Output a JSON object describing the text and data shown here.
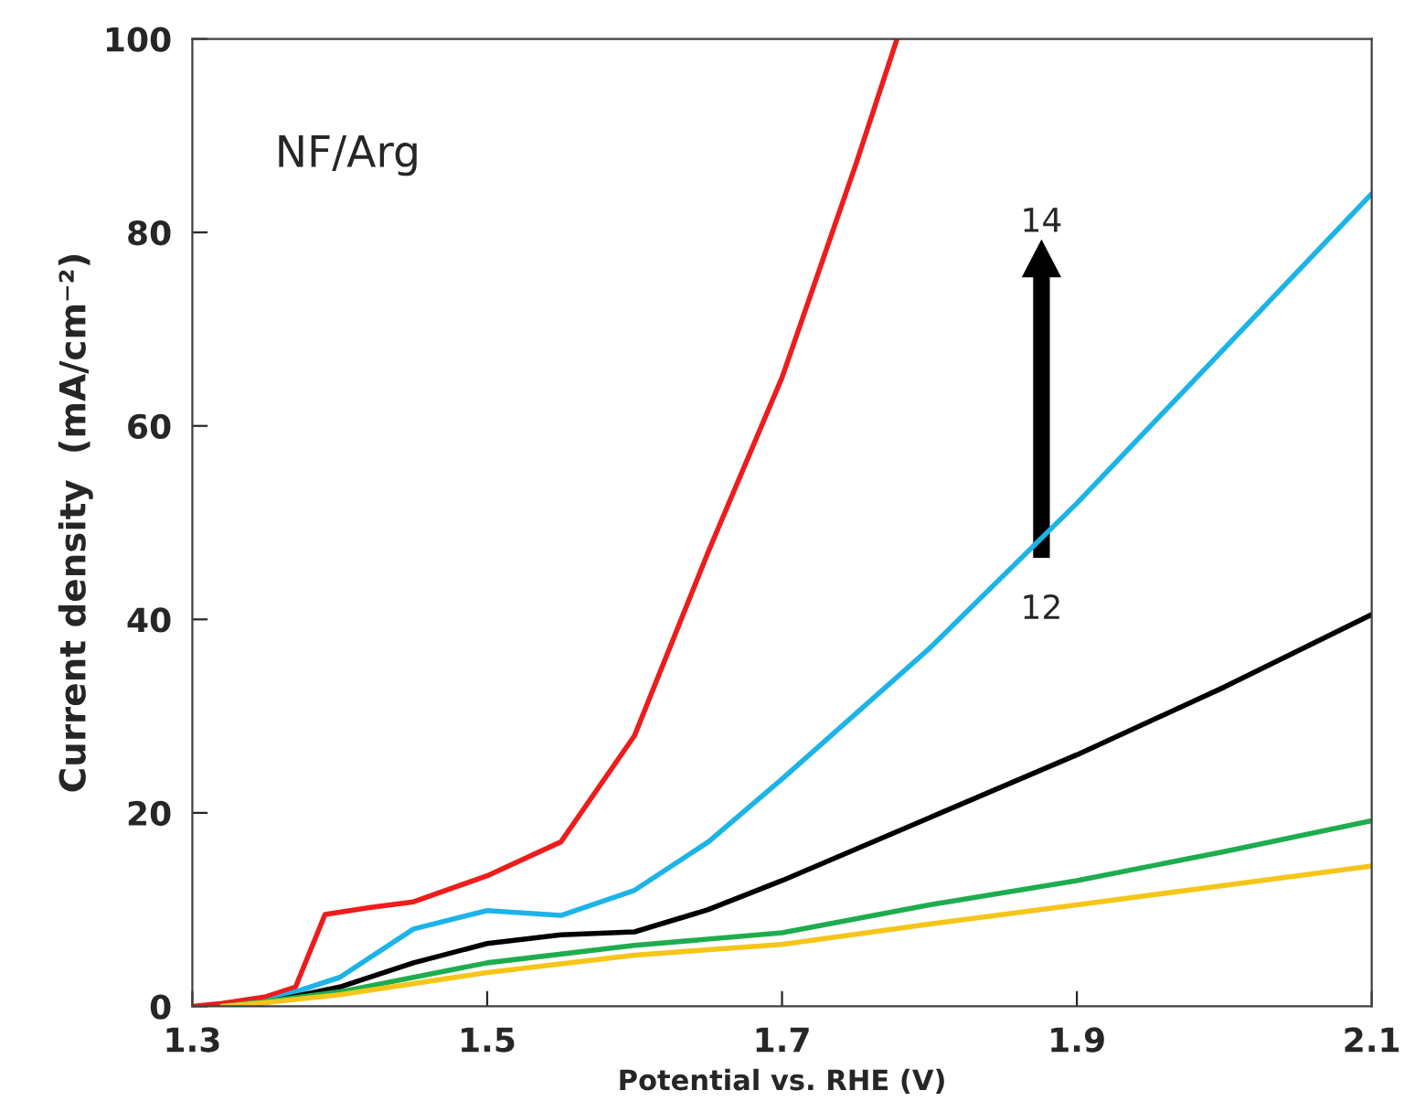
{
  "chart_data": {
    "type": "line",
    "xlabel": "Potential vs. RHE (V)",
    "ylabel": "Current density  (mA/cm⁻²)",
    "annotations": [
      "NF/Arg",
      "14",
      "12"
    ],
    "xlim": [
      1.3,
      2.1
    ],
    "xticks": [
      1.3,
      1.5,
      1.7,
      1.9,
      2.1
    ],
    "ylim": [
      0,
      100
    ],
    "yticks": [
      0,
      20,
      40,
      60,
      80,
      100
    ],
    "grid": false,
    "legend": false,
    "series": [
      {
        "color": "#ee1c1c",
        "x": [
          1.3,
          1.32,
          1.35,
          1.37,
          1.39,
          1.42,
          1.45,
          1.5,
          1.55,
          1.6,
          1.65,
          1.7,
          1.75,
          1.778
        ],
        "values": [
          0,
          0.3,
          1,
          2,
          9.5,
          10.2,
          10.8,
          13.5,
          17,
          28,
          47,
          65,
          87,
          100
        ]
      },
      {
        "color": "#1cb4e8",
        "x": [
          1.32,
          1.35,
          1.4,
          1.45,
          1.5,
          1.55,
          1.6,
          1.65,
          1.7,
          1.8,
          1.9,
          2.0,
          2.1
        ],
        "values": [
          0,
          0.5,
          3,
          8,
          9.9,
          9.4,
          12,
          17,
          23.5,
          37,
          52,
          68,
          84
        ]
      },
      {
        "color": "#000000",
        "x": [
          1.32,
          1.35,
          1.4,
          1.45,
          1.5,
          1.55,
          1.6,
          1.65,
          1.7,
          1.8,
          1.9,
          2.0,
          2.1
        ],
        "values": [
          0,
          0.4,
          2,
          4.5,
          6.5,
          7.4,
          7.7,
          10,
          13,
          19.5,
          26,
          33,
          40.5
        ]
      },
      {
        "color": "#1ead4e",
        "x": [
          1.32,
          1.35,
          1.4,
          1.5,
          1.6,
          1.7,
          1.8,
          1.9,
          2.0,
          2.1
        ],
        "values": [
          0,
          0.5,
          1.5,
          4.5,
          6.3,
          7.6,
          10.5,
          13,
          16,
          19.2
        ]
      },
      {
        "color": "#f5c518",
        "x": [
          1.32,
          1.35,
          1.4,
          1.5,
          1.6,
          1.7,
          1.8,
          1.9,
          2.0,
          2.1
        ],
        "values": [
          0,
          0.4,
          1.2,
          3.5,
          5.3,
          6.4,
          8.5,
          10.5,
          12.5,
          14.5
        ]
      }
    ]
  }
}
